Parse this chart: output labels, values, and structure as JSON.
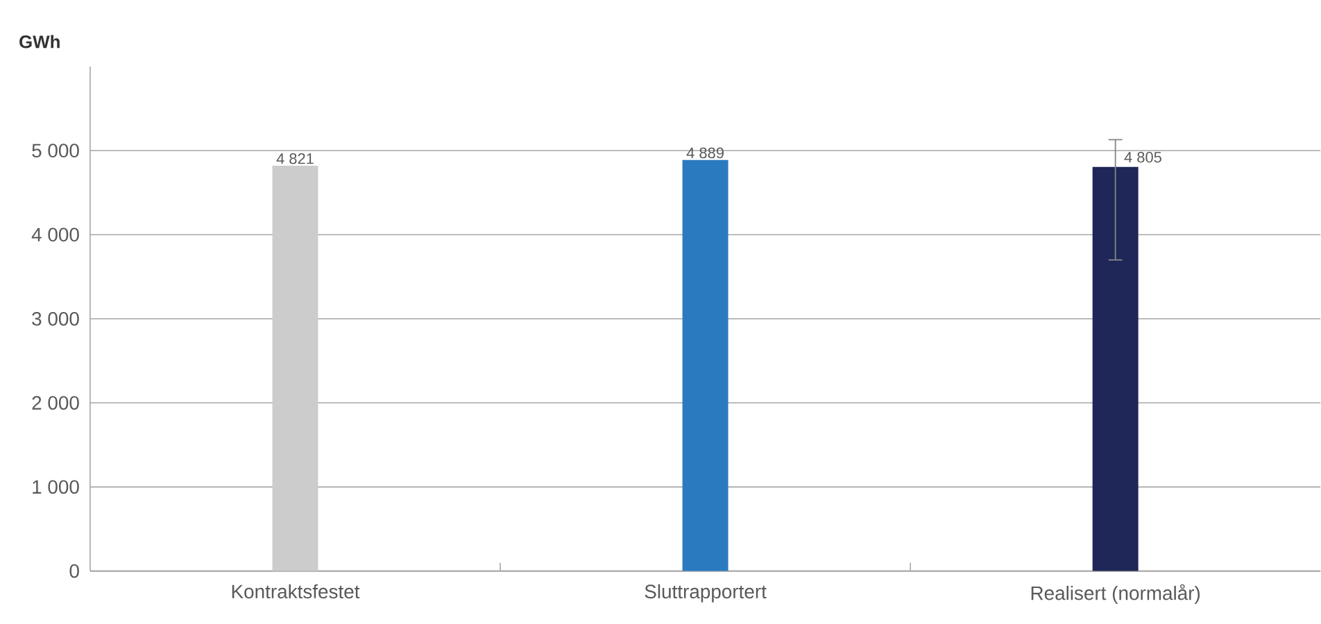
{
  "chart_data": {
    "type": "bar",
    "ylabel": "GWh",
    "categories": [
      "Kontraktsfestet",
      "Sluttrapportert",
      "Realisert (normalår)"
    ],
    "values": [
      4821,
      4889,
      4805
    ],
    "colors": [
      "#cccccd",
      "#2a7abf",
      "#1e2757"
    ],
    "value_labels": [
      "4 821",
      "4 889",
      "4 805"
    ],
    "errors": [
      null,
      null,
      [
        3700,
        5130
      ]
    ],
    "ylim": [
      0,
      6000
    ],
    "yticks": [
      {
        "value": 0,
        "label": "0"
      },
      {
        "value": 1000,
        "label": "1 000"
      },
      {
        "value": 2000,
        "label": "2 000"
      },
      {
        "value": 3000,
        "label": "3 000"
      },
      {
        "value": 4000,
        "label": "4 000"
      },
      {
        "value": 5000,
        "label": "5 000"
      }
    ],
    "grid": "y"
  }
}
